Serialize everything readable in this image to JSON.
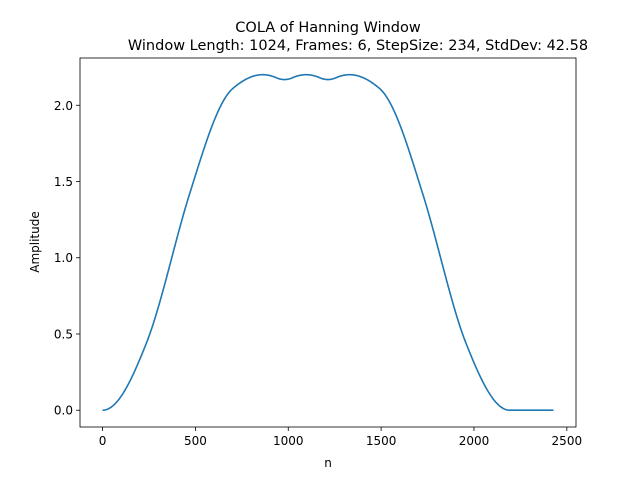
{
  "chart_data": {
    "type": "line",
    "title": "COLA of Hanning Window",
    "subtitle": "Window Length: 1024, Frames: 6, StepSize: 234, StdDev: 42.58",
    "xlabel": "n",
    "ylabel": "Amplitude",
    "xlim": [
      -121.4,
      2549.4
    ],
    "ylim": [
      -0.11,
      2.31
    ],
    "xticks": [
      0,
      500,
      1000,
      1500,
      2000,
      2500
    ],
    "xtick_labels": [
      "0",
      "500",
      "1000",
      "1500",
      "2000",
      "2500"
    ],
    "yticks": [
      0.0,
      0.5,
      1.0,
      1.5,
      2.0
    ],
    "ytick_labels": [
      "0.0",
      "0.5",
      "1.0",
      "1.5",
      "2.0"
    ],
    "grid": false,
    "legend": "none",
    "series": [
      {
        "color": "#1f77b4",
        "window_length": 1024,
        "frames": 6,
        "step_size": 234,
        "x_max": 2428
      }
    ]
  }
}
